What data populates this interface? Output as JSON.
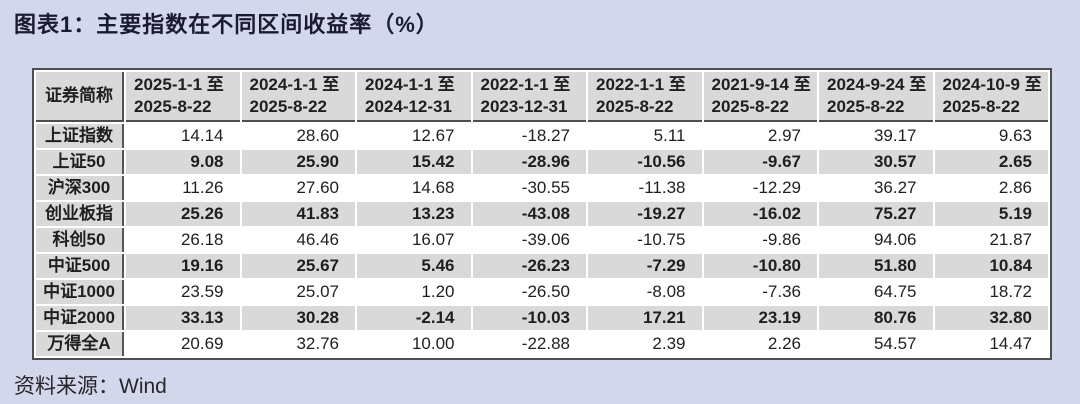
{
  "title": "图表1：主要指数在不同区间收益率（%）",
  "source": "资料来源：Wind",
  "colors": {
    "bg": "#d3d7ec",
    "cell-gray": "#d9d9d9",
    "border-dark": "#4d4d4d",
    "text-dark": "#1f1f1f",
    "title-color": "#1a1a33"
  },
  "table": {
    "corner_header": "证券简称",
    "columns": [
      "2025-1-1 至\n2025-8-22",
      "2024-1-1 至\n2025-8-22",
      "2024-1-1 至\n2024-12-31",
      "2022-1-1 至\n2023-12-31",
      "2022-1-1 至\n2025-8-22",
      "2021-9-14 至\n2025-8-22",
      "2024-9-24 至\n2025-8-22",
      "2024-10-9 至\n2025-8-22"
    ],
    "rows": [
      {
        "name": "上证指数",
        "values": [
          "14.14",
          "28.60",
          "12.67",
          "-18.27",
          "5.11",
          "2.97",
          "39.17",
          "9.63"
        ]
      },
      {
        "name": "上证50",
        "values": [
          "9.08",
          "25.90",
          "15.42",
          "-28.96",
          "-10.56",
          "-9.67",
          "30.57",
          "2.65"
        ]
      },
      {
        "name": "沪深300",
        "values": [
          "11.26",
          "27.60",
          "14.68",
          "-30.55",
          "-11.38",
          "-12.29",
          "36.27",
          "2.86"
        ]
      },
      {
        "name": "创业板指",
        "values": [
          "25.26",
          "41.83",
          "13.23",
          "-43.08",
          "-19.27",
          "-16.02",
          "75.27",
          "5.19"
        ]
      },
      {
        "name": "科创50",
        "values": [
          "26.18",
          "46.46",
          "16.07",
          "-39.06",
          "-10.75",
          "-9.86",
          "94.06",
          "21.87"
        ]
      },
      {
        "name": "中证500",
        "values": [
          "19.16",
          "25.67",
          "5.46",
          "-26.23",
          "-7.29",
          "-10.80",
          "51.80",
          "10.84"
        ]
      },
      {
        "name": "中证1000",
        "values": [
          "23.59",
          "25.07",
          "1.20",
          "-26.50",
          "-8.08",
          "-7.36",
          "64.75",
          "18.72"
        ]
      },
      {
        "name": "中证2000",
        "values": [
          "33.13",
          "30.28",
          "-2.14",
          "-10.03",
          "17.21",
          "23.19",
          "80.76",
          "32.80"
        ]
      },
      {
        "name": "万得全A",
        "values": [
          "20.69",
          "32.76",
          "10.00",
          "-22.88",
          "2.39",
          "2.26",
          "54.57",
          "14.47"
        ]
      }
    ]
  },
  "chart_data": {
    "type": "table",
    "title": "图表1：主要指数在不同区间收益率（%）",
    "row_header": "证券简称",
    "columns": [
      "2025-1-1 至 2025-8-22",
      "2024-1-1 至 2025-8-22",
      "2024-1-1 至 2024-12-31",
      "2022-1-1 至 2023-12-31",
      "2022-1-1 至 2025-8-22",
      "2021-9-14 至 2025-8-22",
      "2024-9-24 至 2025-8-22",
      "2024-10-9 至 2025-8-22"
    ],
    "rows": [
      "上证指数",
      "上证50",
      "沪深300",
      "创业板指",
      "科创50",
      "中证500",
      "中证1000",
      "中证2000",
      "万得全A"
    ],
    "values": [
      [
        14.14,
        28.6,
        12.67,
        -18.27,
        5.11,
        2.97,
        39.17,
        9.63
      ],
      [
        9.08,
        25.9,
        15.42,
        -28.96,
        -10.56,
        -9.67,
        30.57,
        2.65
      ],
      [
        11.26,
        27.6,
        14.68,
        -30.55,
        -11.38,
        -12.29,
        36.27,
        2.86
      ],
      [
        25.26,
        41.83,
        13.23,
        -43.08,
        -19.27,
        -16.02,
        75.27,
        5.19
      ],
      [
        26.18,
        46.46,
        16.07,
        -39.06,
        -10.75,
        -9.86,
        94.06,
        21.87
      ],
      [
        19.16,
        25.67,
        5.46,
        -26.23,
        -7.29,
        -10.8,
        51.8,
        10.84
      ],
      [
        23.59,
        25.07,
        1.2,
        -26.5,
        -8.08,
        -7.36,
        64.75,
        18.72
      ],
      [
        33.13,
        30.28,
        -2.14,
        -10.03,
        17.21,
        23.19,
        80.76,
        32.8
      ],
      [
        20.69,
        32.76,
        10.0,
        -22.88,
        2.39,
        2.26,
        54.57,
        14.47
      ]
    ],
    "source": "资料来源：Wind"
  }
}
